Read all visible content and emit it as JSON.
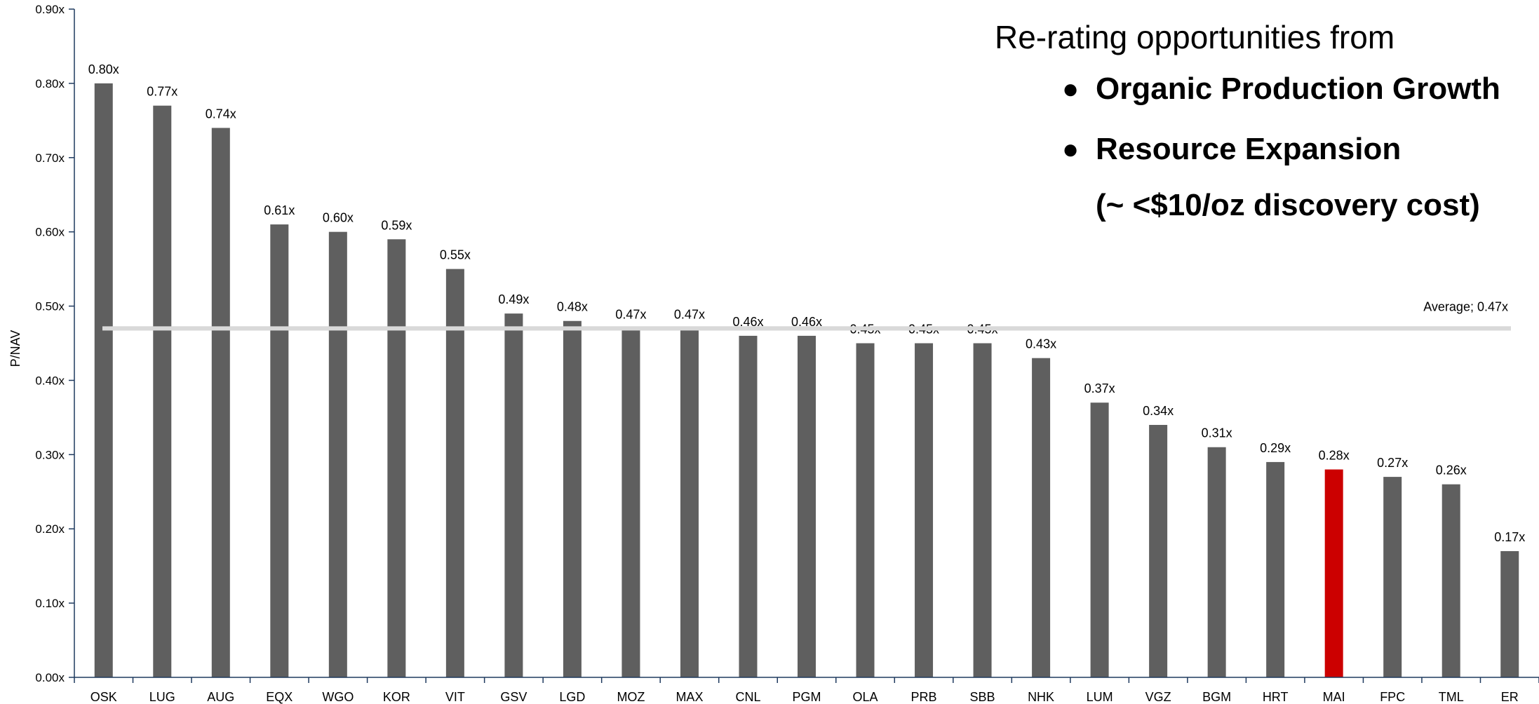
{
  "chart_data": {
    "type": "bar",
    "title": "",
    "xlabel": "",
    "ylabel": "P/NAV",
    "ylim": [
      0,
      0.9
    ],
    "yticks": [
      "0.00x",
      "0.10x",
      "0.20x",
      "0.30x",
      "0.40x",
      "0.50x",
      "0.60x",
      "0.70x",
      "0.80x",
      "0.90x"
    ],
    "grid": false,
    "categories": [
      "OSK",
      "LUG",
      "AUG",
      "EQX",
      "WGO",
      "KOR",
      "VIT",
      "GSV",
      "LGD",
      "MOZ",
      "MAX",
      "CNL",
      "PGM",
      "OLA",
      "PRB",
      "SBB",
      "NHK",
      "LUM",
      "VGZ",
      "BGM",
      "HRT",
      "MAI",
      "FPC",
      "TML",
      "ER"
    ],
    "values": [
      0.8,
      0.77,
      0.74,
      0.61,
      0.6,
      0.59,
      0.55,
      0.49,
      0.48,
      0.47,
      0.47,
      0.46,
      0.46,
      0.45,
      0.45,
      0.45,
      0.43,
      0.37,
      0.34,
      0.31,
      0.29,
      0.28,
      0.27,
      0.26,
      0.17
    ],
    "data_labels": [
      "0.80x",
      "0.77x",
      "0.74x",
      "0.61x",
      "0.60x",
      "0.59x",
      "0.55x",
      "0.49x",
      "0.48x",
      "0.47x",
      "0.47x",
      "0.46x",
      "0.46x",
      "0.45x",
      "0.45x",
      "0.45x",
      "0.43x",
      "0.37x",
      "0.34x",
      "0.31x",
      "0.29x",
      "0.28x",
      "0.27x",
      "0.26x",
      "0.17x"
    ],
    "highlight_category": "MAI",
    "average": {
      "value": 0.47,
      "label": "Average; 0.47x"
    },
    "colors": {
      "bar": "#5f5f5f",
      "highlight": "#cc0000",
      "average_line": "#d9d9d9",
      "axis": "#1f3a5f"
    }
  },
  "callout": {
    "title": "Re-rating opportunities from",
    "items": [
      "Organic Production Growth",
      "Resource Expansion"
    ],
    "note": "(~ <$10/oz discovery cost)"
  }
}
